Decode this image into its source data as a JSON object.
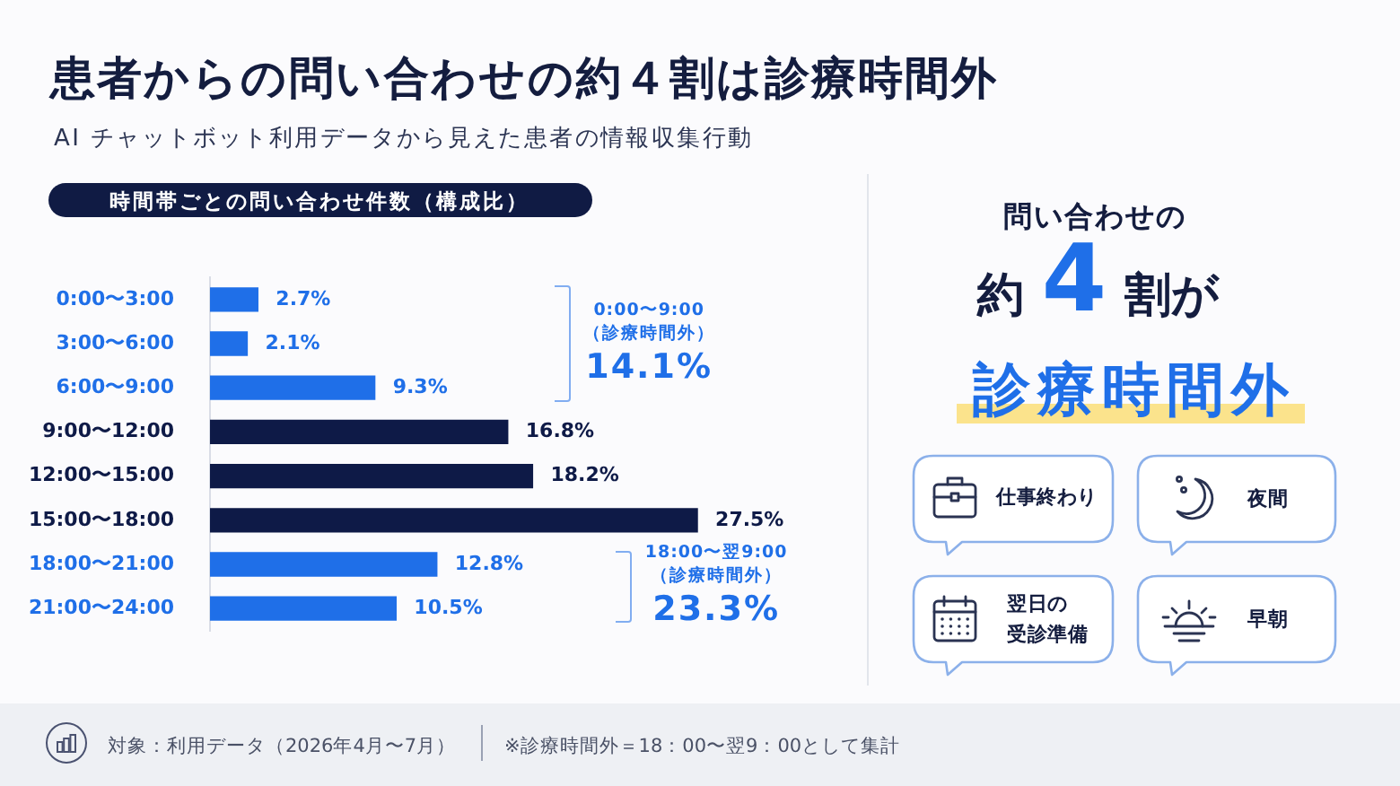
{
  "chart_data": [
    {
      "type": "bar",
      "title": "患者からの問い合わせの約４割は診療時間外",
      "subtitle": "AI チャットボット利用データから見えた患者の情報収集行動",
      "orientation": "horizontal",
      "categories": [
        "0:00〜3:00",
        "3:00〜6:00",
        "6:00〜9:00",
        "9:00〜12:00",
        "12:00〜15:00",
        "15:00〜18:00",
        "18:00〜21:00",
        "21:00〜24:00"
      ],
      "values": [
        2.7,
        2.1,
        9.3,
        16.8,
        18.2,
        27.5,
        12.8,
        10.5
      ],
      "colors": [
        "#1f6fe8",
        "#1f6fe8",
        "#1f6fe8",
        "#0e1a47",
        "#0e1a47",
        "#0e1a47",
        "#1f6fe8",
        "#1f6fe8"
      ],
      "value_labels": [
        "2.7%",
        "2.1%",
        "9.3%",
        "16.8%",
        "18.2%",
        "27.5%",
        "12.8%",
        "10.5%"
      ],
      "tick_labels": "y",
      "annotations": [
        "時間帯ごとの問い合わせ件数（構成比）",
        "0:00〜9:00\n（診療時間外）\n14.1%",
        "18:00〜翌9:00\n（診療時間外）\n23.3%",
        "対象：利用データ（2026年4月〜7月）",
        "※診療時間外＝18：00〜翌9：00として集計"
      ]
    },
    {
      "type": "other",
      "annotations": [
        "問い合わせの",
        "約4割が",
        "診療時間外",
        "仕事終わり",
        "夜間",
        "翌日の受診準備",
        "早朝"
      ]
    }
  ]
}
